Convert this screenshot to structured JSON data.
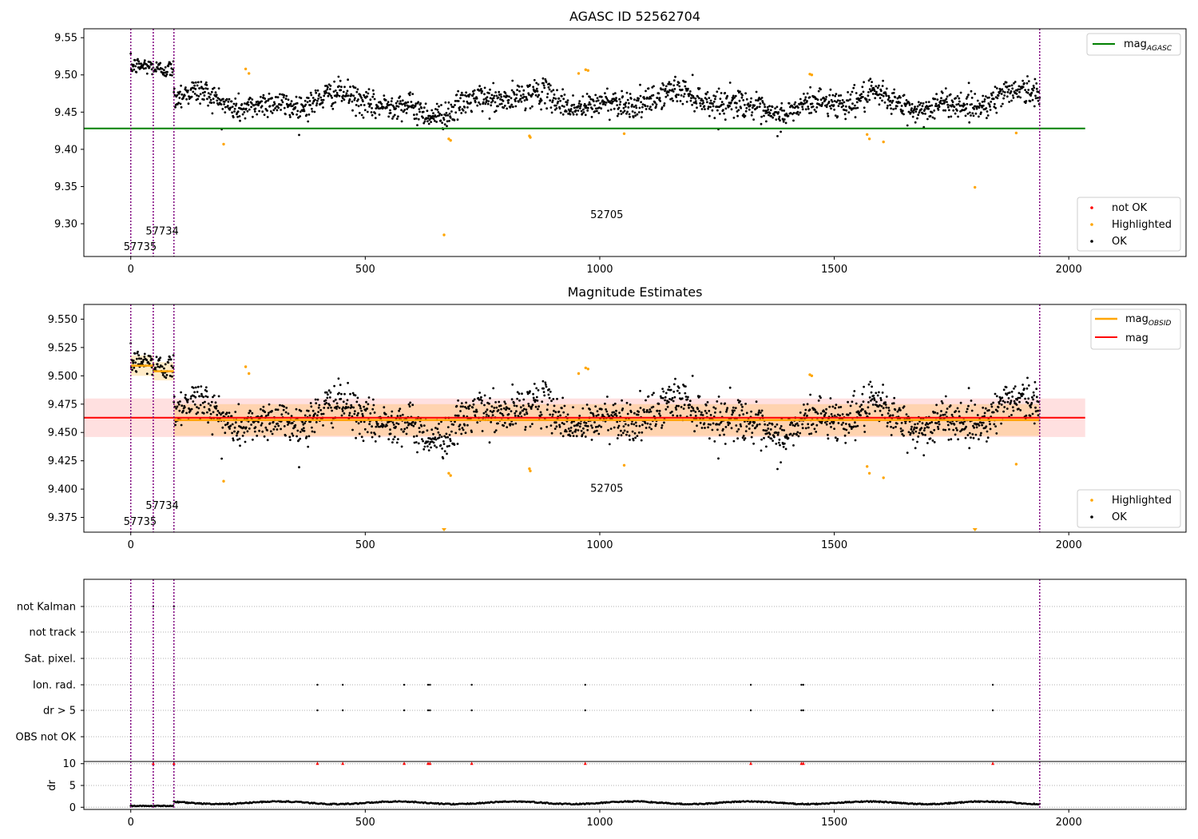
{
  "chart_data": [
    {
      "type": "scatter",
      "title": "AGASC ID 52562704",
      "xlim": [
        -100,
        2250
      ],
      "ylim": [
        9.256,
        9.562
      ],
      "xticks": [
        "0",
        "500",
        "1000",
        "1500",
        "2000"
      ],
      "yticks": [
        "9.30",
        "9.35",
        "9.40",
        "9.45",
        "9.50",
        "9.55"
      ],
      "vlines_x": [
        0,
        48,
        92,
        1938
      ],
      "obsid_labels": [
        {
          "text": "57735",
          "x": 20,
          "y": 9.27
        },
        {
          "text": "57734",
          "x": 67,
          "y": 9.291
        },
        {
          "text": "52705",
          "x": 1015,
          "y": 9.313
        }
      ],
      "mag_agasc": {
        "y": 9.428,
        "x": [
          -100,
          2035
        ],
        "color": "#008000"
      },
      "legend_lines": [
        {
          "label": "mag",
          "subscript": "AGASC",
          "color": "#008000"
        }
      ],
      "legend_points": [
        {
          "label": "not OK",
          "color": "#ff0000"
        },
        {
          "label": "Highlighted",
          "color": "#ffa500"
        },
        {
          "label": "OK",
          "color": "#000000"
        }
      ],
      "segments": [
        {
          "x": [
            0,
            48
          ],
          "mean": 9.512,
          "noise": 0.008
        },
        {
          "x": [
            48,
            92
          ],
          "mean": 9.508,
          "noise": 0.008
        },
        {
          "x": [
            92,
            1938
          ],
          "mean": 9.463,
          "noise": 0.012
        }
      ],
      "highlighted_points": [
        [
          198,
          9.407
        ],
        [
          245,
          9.508
        ],
        [
          252,
          9.502
        ],
        [
          668,
          9.285
        ],
        [
          678,
          9.414
        ],
        [
          682,
          9.412
        ],
        [
          850,
          9.418
        ],
        [
          852,
          9.416
        ],
        [
          955,
          9.502
        ],
        [
          970,
          9.507
        ],
        [
          975,
          9.506
        ],
        [
          1052,
          9.421
        ],
        [
          1448,
          9.501
        ],
        [
          1452,
          9.5
        ],
        [
          1570,
          9.42
        ],
        [
          1575,
          9.414
        ],
        [
          1605,
          9.41
        ],
        [
          1800,
          9.349
        ],
        [
          1888,
          9.422
        ]
      ]
    },
    {
      "type": "scatter",
      "title": "Magnitude Estimates",
      "xlim": [
        -100,
        2250
      ],
      "ylim": [
        9.362,
        9.563
      ],
      "xticks": [
        "0",
        "500",
        "1000",
        "1500",
        "2000"
      ],
      "yticks": [
        "9.375",
        "9.400",
        "9.425",
        "9.450",
        "9.475",
        "9.500",
        "9.525",
        "9.550"
      ],
      "vlines_x": [
        0,
        48,
        92,
        1938
      ],
      "obsid_labels": [
        {
          "text": "57735",
          "x": 20,
          "y": 9.372
        },
        {
          "text": "57734",
          "x": 67,
          "y": 9.386
        },
        {
          "text": "52705",
          "x": 1015,
          "y": 9.401
        }
      ],
      "mag": {
        "y": 9.463,
        "band": [
          9.446,
          9.48
        ],
        "x": [
          -100,
          2035
        ],
        "color": "#ff0000"
      },
      "mag_obsid": [
        {
          "x": [
            0,
            48
          ],
          "y": 9.509,
          "band": [
            9.5,
            9.518
          ]
        },
        {
          "x": [
            48,
            92
          ],
          "y": 9.504,
          "band": [
            9.496,
            9.512
          ]
        },
        {
          "x": [
            92,
            1938
          ],
          "y": 9.461,
          "band": [
            9.447,
            9.475
          ]
        }
      ],
      "legend_lines": [
        {
          "label": "mag",
          "subscript": "OBSID",
          "color": "#ffa500"
        },
        {
          "label": "mag",
          "subscript": "",
          "color": "#ff0000"
        }
      ],
      "legend_points": [
        {
          "label": "Highlighted",
          "color": "#ffa500"
        },
        {
          "label": "OK",
          "color": "#000000"
        }
      ],
      "highlighted_points": [
        [
          198,
          9.407
        ],
        [
          245,
          9.508
        ],
        [
          252,
          9.502
        ],
        [
          678,
          9.414
        ],
        [
          682,
          9.412
        ],
        [
          850,
          9.418
        ],
        [
          852,
          9.416
        ],
        [
          955,
          9.502
        ],
        [
          970,
          9.507
        ],
        [
          975,
          9.506
        ],
        [
          1052,
          9.421
        ],
        [
          1448,
          9.501
        ],
        [
          1452,
          9.5
        ],
        [
          1570,
          9.42
        ],
        [
          1575,
          9.414
        ],
        [
          1605,
          9.41
        ],
        [
          1888,
          9.422
        ]
      ],
      "below_range_markers_x": [
        668,
        1800
      ]
    },
    {
      "type": "scatter",
      "title": "",
      "xlim": [
        -100,
        2250
      ],
      "xticks": [
        "0",
        "500",
        "1000",
        "1500",
        "2000"
      ],
      "flag_rows": [
        "not Kalman",
        "not track",
        "Sat. pixel.",
        "Ion. rad.",
        "dr > 5",
        "OBS not OK"
      ],
      "flag_points": {
        "not Kalman": [
          48,
          92
        ],
        "not track": [],
        "Sat. pixel.": [],
        "Ion. rad.": [
          398,
          452,
          583,
          634,
          638,
          727,
          969,
          1322,
          1430,
          1434,
          1838
        ],
        "dr > 5": [
          398,
          452,
          583,
          634,
          638,
          727,
          969,
          1322,
          1430,
          1434,
          1838
        ],
        "OBS not OK": []
      },
      "dr_axis": {
        "label": "dr",
        "ylim": [
          -0.5,
          10.5
        ],
        "yticks": [
          "0",
          "5",
          "10"
        ]
      },
      "dr_outliers_x": [
        48,
        92,
        398,
        452,
        583,
        634,
        638,
        727,
        969,
        1322,
        1430,
        1434,
        1838
      ],
      "vlines_x": [
        0,
        48,
        92,
        1938
      ]
    }
  ]
}
